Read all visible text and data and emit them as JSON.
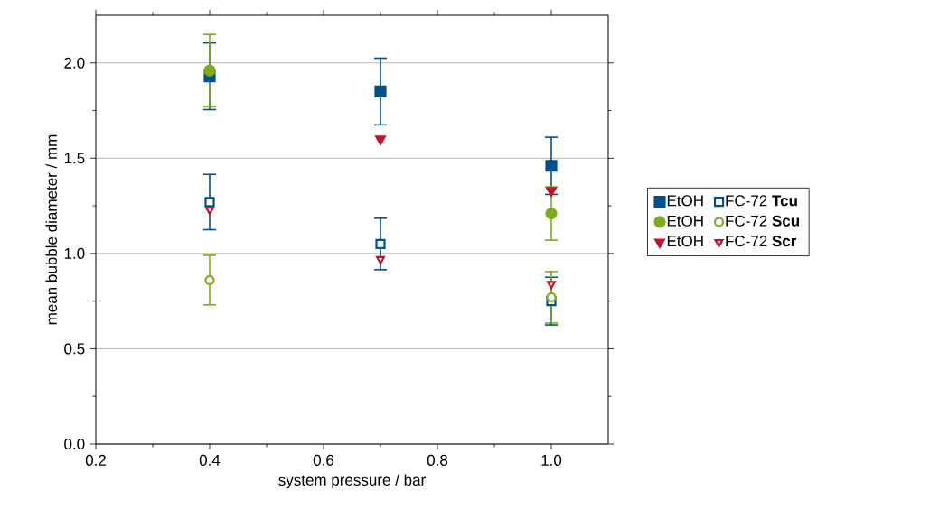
{
  "chart_data": {
    "type": "scatter",
    "xlabel": "system pressure / bar",
    "ylabel": "mean bubble diameter / mm",
    "xlim": [
      0.2,
      1.1
    ],
    "ylim": [
      0,
      2.25
    ],
    "xticks": [
      0.2,
      0.4,
      0.6,
      0.8,
      {
        "value": 1.0,
        "label": "1.0"
      }
    ],
    "yticks": [
      {
        "value": 0,
        "label": "0.0"
      },
      0.5,
      {
        "value": 1.0,
        "label": "1.0"
      },
      1.5,
      {
        "value": 2.0,
        "label": "2.0"
      }
    ],
    "grid": "y",
    "legend": "right",
    "series": [
      {
        "name": "EtOH",
        "color": "#00508c",
        "marker": "square",
        "x": [
          0.4,
          0.7,
          1.0
        ],
        "values": [
          1.93,
          1.85,
          1.46
        ],
        "errors": [
          0.175,
          0.175,
          0.15
        ]
      },
      {
        "name": "FC-72 **Tcu**",
        "color": "#00508c",
        "marker": "square-open",
        "x": [
          0.4,
          0.7,
          1.0
        ],
        "values": [
          1.27,
          1.05,
          0.75
        ],
        "errors": [
          0.145,
          0.135,
          0.125
        ]
      },
      {
        "name": "EtOH",
        "color": "#7fab1f",
        "marker": "circle",
        "x": [
          0.4,
          1.0
        ],
        "values": [
          1.96,
          1.21
        ],
        "errors": [
          0.19,
          0.14
        ]
      },
      {
        "name": "FC-72 **Scu**",
        "color": "#7fab1f",
        "marker": "circle-open",
        "x": [
          0.4,
          1.0
        ],
        "values": [
          0.86,
          0.77
        ],
        "errors": [
          0.13,
          0.135
        ]
      },
      {
        "name": "EtOH",
        "color": "#c0142a",
        "marker": "triangle-down",
        "x": [
          0.7,
          1.0
        ],
        "values": [
          1.6,
          1.33
        ]
      },
      {
        "name": "FC-72 **Scr**",
        "color": "#c0142a",
        "marker": "triangle-down-open",
        "x": [
          0.4,
          0.7,
          1.0
        ],
        "values": [
          1.23,
          0.97,
          0.84
        ]
      }
    ]
  }
}
